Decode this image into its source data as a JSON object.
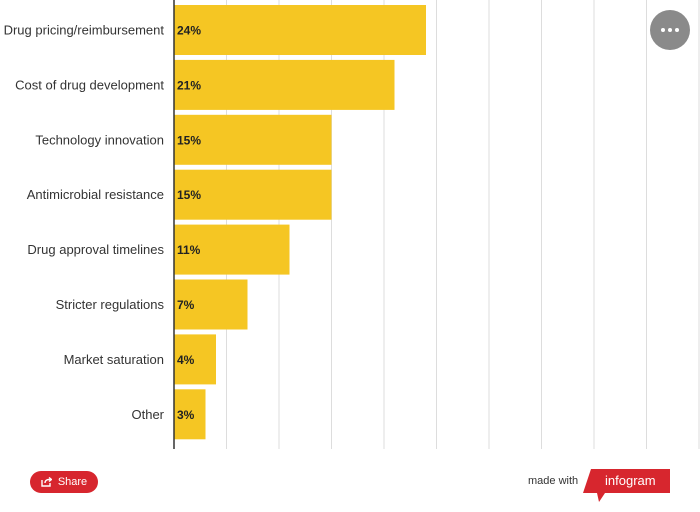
{
  "chart_data": {
    "type": "bar",
    "orientation": "horizontal",
    "categories": [
      "Drug pricing/reimbursement",
      "Cost of drug development",
      "Technology innovation",
      "Antimicrobial resistance",
      "Drug approval timelines",
      "Stricter regulations",
      "Market saturation",
      "Other"
    ],
    "values": [
      24,
      21,
      15,
      15,
      11,
      7,
      4,
      3
    ],
    "value_labels": [
      "24%",
      "21%",
      "15%",
      "15%",
      "11%",
      "7%",
      "4%",
      "3%"
    ],
    "xlim": [
      0,
      50
    ],
    "grid": true,
    "bar_color": "#f5c623"
  },
  "footer": {
    "share_label": "Share",
    "made_with_label": "made with",
    "brand_label": "infogram",
    "brand_color": "#d7262e"
  },
  "icons": {
    "more": "more-options-icon",
    "share": "share-icon"
  }
}
